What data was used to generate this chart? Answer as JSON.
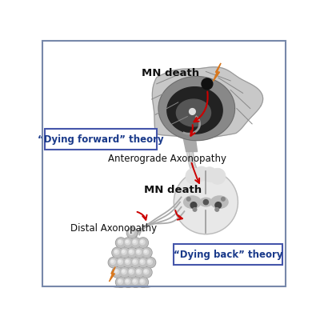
{
  "bg_color": "#ffffff",
  "border_color": "#7788aa",
  "text_mn_death_1": "MN death",
  "text_mn_death_2": "MN death",
  "text_anterograde": "Anterograde Axonopathy",
  "text_distal": "Distal Axonopathy",
  "text_dying_forward": "“Dying forward” theory",
  "text_dying_back": "“Dying back” theory",
  "label_color": "#1a3a8a",
  "text_color_black": "#111111",
  "box_border_color": "#4455aa",
  "red_arrow_color": "#cc0000",
  "orange_bolt_color": "#d87820"
}
